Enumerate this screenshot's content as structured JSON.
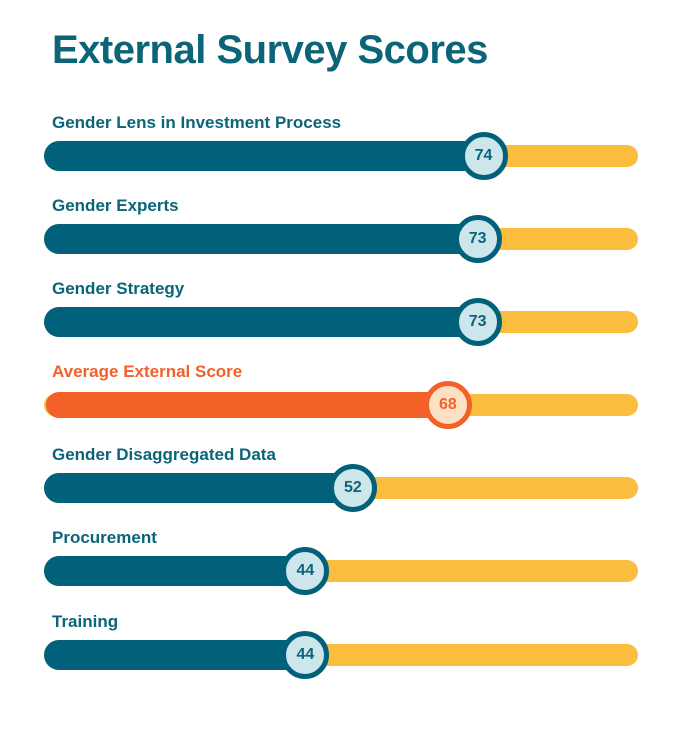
{
  "title": "External Survey Scores",
  "colors": {
    "primary": "#02617a",
    "highlight": "#f26128",
    "track": "#fbbd3d",
    "knob_fill": "#cce6eb",
    "knob_fill_highlight": "#fde0c6",
    "text": "#0b6478"
  },
  "chart_data": {
    "type": "bar",
    "title": "External Survey Scores",
    "orientation": "horizontal",
    "xlim": [
      0,
      100
    ],
    "categories": [
      "Gender Lens in Investment Process",
      "Gender Experts",
      "Gender Strategy",
      "Average External Score",
      "Gender Disaggregated Data",
      "Procurement",
      "Training"
    ],
    "values": [
      74,
      73,
      73,
      68,
      52,
      44,
      44
    ],
    "highlighted": [
      false,
      false,
      false,
      true,
      false,
      false,
      false
    ],
    "data_labels": [
      "74",
      "73",
      "73",
      "68",
      "52",
      "44",
      "44"
    ]
  }
}
